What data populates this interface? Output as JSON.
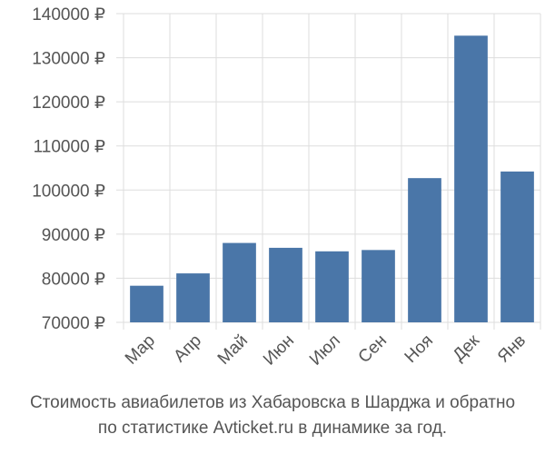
{
  "chart_data": {
    "type": "bar",
    "categories": [
      "Мар",
      "Апр",
      "Май",
      "Июн",
      "Июл",
      "Сен",
      "Ноя",
      "Дек",
      "Янв"
    ],
    "values": [
      78300,
      81100,
      88000,
      86900,
      86100,
      86400,
      102700,
      135000,
      104200
    ],
    "ylim": [
      70000,
      140000
    ],
    "yticks": [
      70000,
      80000,
      90000,
      100000,
      110000,
      120000,
      130000,
      140000
    ],
    "ytick_labels": [
      "70000 ₽",
      "80000 ₽",
      "90000 ₽",
      "100000 ₽",
      "110000 ₽",
      "120000 ₽",
      "130000 ₽",
      "140000 ₽"
    ],
    "grid": true,
    "bar_color": "#4a76a8",
    "grid_color": "#dddddd"
  },
  "caption": {
    "line1": "Стоимость авиабилетов из Хабаровска в Шарджа и обратно",
    "line2": "по статистике Avticket.ru в динамике за год."
  }
}
